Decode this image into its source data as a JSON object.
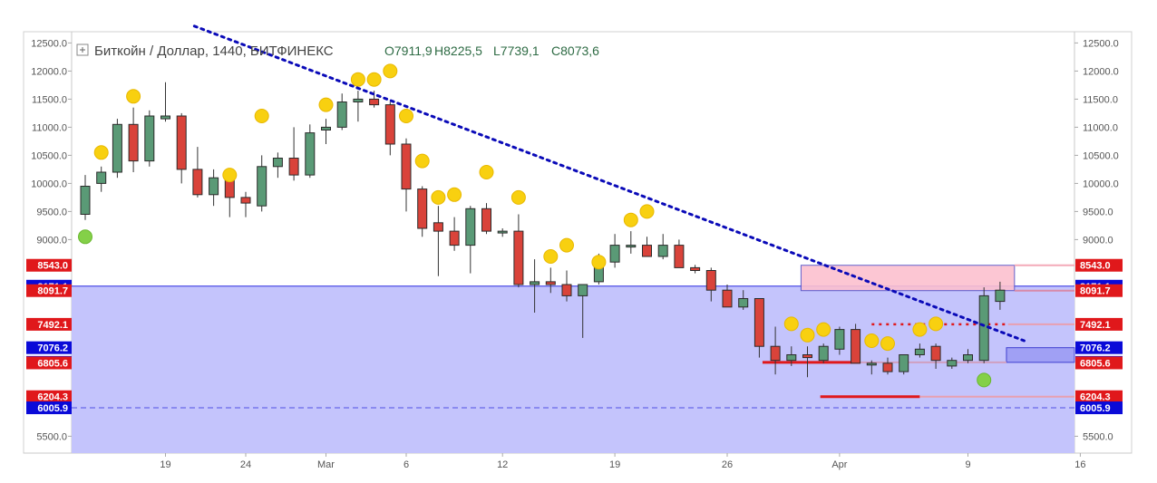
{
  "header": {
    "symbol_title": "Биткойн / Доллар, 1440, БИТФИНЕКС",
    "open_label": "O",
    "open_value": "7911,9",
    "high_label": "H",
    "high_value": "8225,5",
    "low_label": "L",
    "low_value": "7739,1",
    "close_label": "C",
    "close_value": "8073,6"
  },
  "chart_data": {
    "type": "candlestick",
    "ylim": [
      5200,
      12700
    ],
    "y_ticks": [
      "12500.0",
      "12000.0",
      "11500.0",
      "11000.0",
      "10500.0",
      "10000.0",
      "9500.0",
      "9000.0",
      "5500.0"
    ],
    "y_tick_values": [
      12500,
      12000,
      11500,
      11000,
      10500,
      10000,
      9500,
      9000,
      5500
    ],
    "x_tick_labels": [
      "19",
      "24",
      "Mar",
      "6",
      "12",
      "19",
      "26",
      "Apr",
      "9",
      "16"
    ],
    "x_tick_index": [
      5,
      10,
      15,
      20,
      26,
      33,
      40,
      47,
      55,
      62
    ],
    "candles": [
      {
        "o": 9450,
        "h": 10150,
        "l": 9350,
        "c": 9950
      },
      {
        "o": 10000,
        "h": 10300,
        "l": 9850,
        "c": 10200
      },
      {
        "o": 10200,
        "h": 11150,
        "l": 10100,
        "c": 11050
      },
      {
        "o": 11050,
        "h": 11350,
        "l": 10200,
        "c": 10400
      },
      {
        "o": 10400,
        "h": 11300,
        "l": 10300,
        "c": 11200
      },
      {
        "o": 11150,
        "h": 11800,
        "l": 11100,
        "c": 11200
      },
      {
        "o": 11200,
        "h": 11250,
        "l": 10000,
        "c": 10250
      },
      {
        "o": 10250,
        "h": 10650,
        "l": 9750,
        "c": 9800
      },
      {
        "o": 9800,
        "h": 10250,
        "l": 9600,
        "c": 10100
      },
      {
        "o": 10100,
        "h": 10250,
        "l": 9400,
        "c": 9750
      },
      {
        "o": 9750,
        "h": 9850,
        "l": 9400,
        "c": 9650
      },
      {
        "o": 9600,
        "h": 10500,
        "l": 9500,
        "c": 10300
      },
      {
        "o": 10300,
        "h": 10550,
        "l": 10100,
        "c": 10450
      },
      {
        "o": 10450,
        "h": 11000,
        "l": 10050,
        "c": 10150
      },
      {
        "o": 10150,
        "h": 11050,
        "l": 10100,
        "c": 10900
      },
      {
        "o": 10950,
        "h": 11150,
        "l": 10700,
        "c": 11000
      },
      {
        "o": 11000,
        "h": 11600,
        "l": 10950,
        "c": 11450
      },
      {
        "o": 11450,
        "h": 11650,
        "l": 11100,
        "c": 11500
      },
      {
        "o": 11500,
        "h": 11650,
        "l": 11350,
        "c": 11400
      },
      {
        "o": 11400,
        "h": 11450,
        "l": 10500,
        "c": 10700
      },
      {
        "o": 10700,
        "h": 10800,
        "l": 9500,
        "c": 9900
      },
      {
        "o": 9900,
        "h": 9950,
        "l": 9050,
        "c": 9200
      },
      {
        "o": 9300,
        "h": 9600,
        "l": 8350,
        "c": 9150
      },
      {
        "o": 9150,
        "h": 9400,
        "l": 8800,
        "c": 8900
      },
      {
        "o": 8900,
        "h": 9600,
        "l": 8400,
        "c": 9550
      },
      {
        "o": 9550,
        "h": 9650,
        "l": 9100,
        "c": 9150
      },
      {
        "o": 9150,
        "h": 9200,
        "l": 9050,
        "c": 9150
      },
      {
        "o": 9150,
        "h": 9450,
        "l": 8150,
        "c": 8200
      },
      {
        "o": 8200,
        "h": 8650,
        "l": 7700,
        "c": 8250
      },
      {
        "o": 8250,
        "h": 8500,
        "l": 8050,
        "c": 8200
      },
      {
        "o": 8200,
        "h": 8450,
        "l": 7900,
        "c": 8000
      },
      {
        "o": 8000,
        "h": 8200,
        "l": 7250,
        "c": 8200
      },
      {
        "o": 8250,
        "h": 8750,
        "l": 8200,
        "c": 8600
      },
      {
        "o": 8600,
        "h": 9100,
        "l": 8500,
        "c": 8900
      },
      {
        "o": 8900,
        "h": 9150,
        "l": 8750,
        "c": 8900
      },
      {
        "o": 8900,
        "h": 9050,
        "l": 8750,
        "c": 8700
      },
      {
        "o": 8700,
        "h": 9100,
        "l": 8650,
        "c": 8900
      },
      {
        "o": 8900,
        "h": 9000,
        "l": 8500,
        "c": 8500
      },
      {
        "o": 8500,
        "h": 8550,
        "l": 8400,
        "c": 8450
      },
      {
        "o": 8450,
        "h": 8500,
        "l": 7900,
        "c": 8100
      },
      {
        "o": 8100,
        "h": 8200,
        "l": 7800,
        "c": 7800
      },
      {
        "o": 7800,
        "h": 8100,
        "l": 7750,
        "c": 7950
      },
      {
        "o": 7950,
        "h": 7950,
        "l": 6900,
        "c": 7100
      },
      {
        "o": 7100,
        "h": 7450,
        "l": 6600,
        "c": 6850
      },
      {
        "o": 6850,
        "h": 7100,
        "l": 6750,
        "c": 6950
      },
      {
        "o": 6950,
        "h": 7100,
        "l": 6550,
        "c": 6900
      },
      {
        "o": 6850,
        "h": 7150,
        "l": 6800,
        "c": 7100
      },
      {
        "o": 7050,
        "h": 7450,
        "l": 6950,
        "c": 7400
      },
      {
        "o": 7400,
        "h": 7500,
        "l": 6800,
        "c": 6800
      },
      {
        "o": 6800,
        "h": 6850,
        "l": 6600,
        "c": 6800
      },
      {
        "o": 6800,
        "h": 6900,
        "l": 6600,
        "c": 6650
      },
      {
        "o": 6650,
        "h": 6950,
        "l": 6600,
        "c": 6950
      },
      {
        "o": 6950,
        "h": 7150,
        "l": 6900,
        "c": 7050
      },
      {
        "o": 7100,
        "h": 7150,
        "l": 6700,
        "c": 6850
      },
      {
        "o": 6750,
        "h": 6900,
        "l": 6700,
        "c": 6850
      },
      {
        "o": 6850,
        "h": 7050,
        "l": 6800,
        "c": 6950
      },
      {
        "o": 6850,
        "h": 8150,
        "l": 6800,
        "c": 8000
      },
      {
        "o": 7900,
        "h": 8250,
        "l": 7750,
        "c": 8100
      }
    ],
    "yellow_markers": [
      {
        "i": 1,
        "v": 10550
      },
      {
        "i": 3,
        "v": 11550
      },
      {
        "i": 9,
        "v": 10150
      },
      {
        "i": 11,
        "v": 11200
      },
      {
        "i": 15,
        "v": 11400
      },
      {
        "i": 17,
        "v": 11850
      },
      {
        "i": 18,
        "v": 11850
      },
      {
        "i": 19,
        "v": 12000
      },
      {
        "i": 20,
        "v": 11200
      },
      {
        "i": 21,
        "v": 10400
      },
      {
        "i": 22,
        "v": 9750
      },
      {
        "i": 23,
        "v": 9800
      },
      {
        "i": 25,
        "v": 10200
      },
      {
        "i": 27,
        "v": 9750
      },
      {
        "i": 29,
        "v": 8700
      },
      {
        "i": 30,
        "v": 8900
      },
      {
        "i": 32,
        "v": 8600
      },
      {
        "i": 34,
        "v": 9350
      },
      {
        "i": 35,
        "v": 9500
      },
      {
        "i": 44,
        "v": 7500
      },
      {
        "i": 45,
        "v": 7300
      },
      {
        "i": 46,
        "v": 7400
      },
      {
        "i": 49,
        "v": 7200
      },
      {
        "i": 50,
        "v": 7150
      },
      {
        "i": 52,
        "v": 7400
      },
      {
        "i": 53,
        "v": 7500
      }
    ],
    "green_markers": [
      {
        "i": 0,
        "v": 9050
      },
      {
        "i": 56,
        "v": 6500
      }
    ],
    "price_levels": [
      {
        "label": "8543.0",
        "value": 8543.0,
        "color": "#e0181b"
      },
      {
        "label": "8171.1",
        "value": 8171.1,
        "color": "#0a0ad8"
      },
      {
        "label": "8091.7",
        "value": 8091.7,
        "color": "#e0181b"
      },
      {
        "label": "7492.1",
        "value": 7492.1,
        "color": "#e0181b"
      },
      {
        "label": "7076.2",
        "value": 7076.2,
        "color": "#0a0ad8"
      },
      {
        "label": "6815.2",
        "value": 6815.2,
        "color": "#0a0ad8"
      },
      {
        "label": "6805.6",
        "value": 6805.6,
        "color": "#e0181b"
      },
      {
        "label": "6204.3",
        "value": 6204.3,
        "color": "#e0181b"
      },
      {
        "label": "6005.9",
        "value": 6005.9,
        "color": "#0a0ad8"
      }
    ],
    "trendline": {
      "i1": 6.8,
      "v1": 12800,
      "i2": 58.5,
      "v2": 7200
    },
    "colors": {
      "up": "#5a9a76",
      "down": "#d9433a",
      "yellow": "#f8d010",
      "green": "#84d048",
      "zone": "#c4c4fc",
      "pink": "#fcc0cf"
    }
  }
}
